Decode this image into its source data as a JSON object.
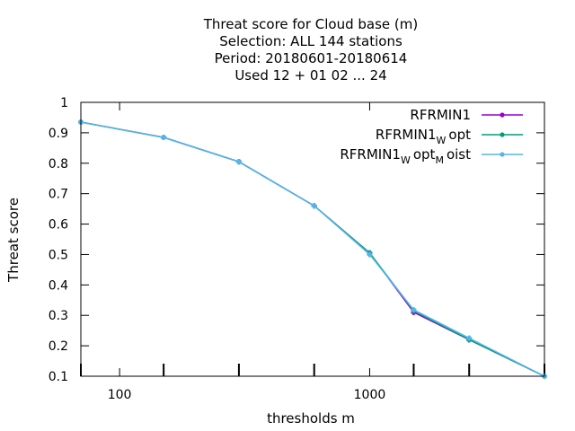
{
  "chart_data": {
    "type": "line",
    "title_lines": [
      "Threat score  for Cloud base (m)",
      "Selection: ALL    144 stations",
      "Period: 20180601-20180614",
      "Used  12 + 01 02 ... 24"
    ],
    "xlabel": "thresholds m",
    "ylabel": "Threat score",
    "xscale": "log",
    "xlim": [
      70,
      5000
    ],
    "ylim": [
      0.1,
      1.0
    ],
    "x_major_ticks": [
      100,
      1000
    ],
    "x_major_tick_labels": [
      "100",
      "1000"
    ],
    "x_minor_ticks": [
      70,
      150,
      300,
      600,
      1500,
      2500,
      5000
    ],
    "y_ticks": [
      0.1,
      0.2,
      0.3,
      0.4,
      0.5,
      0.6,
      0.7,
      0.8,
      0.9,
      1.0
    ],
    "y_tick_labels": [
      "0.1",
      "0.2",
      "0.3",
      "0.4",
      "0.5",
      "0.6",
      "0.7",
      "0.8",
      "0.9",
      "1"
    ],
    "grid": false,
    "legend_position": "top-right",
    "x": [
      70,
      150,
      300,
      600,
      1000,
      1500,
      2500,
      5000
    ],
    "series": [
      {
        "legend_main": "RFRMIN1",
        "legend_parts": [],
        "color": "#9400d3",
        "values": [
          0.935,
          0.885,
          0.805,
          0.66,
          0.505,
          0.31,
          0.22,
          0.1
        ]
      },
      {
        "legend_main": "RFRMIN1",
        "legend_parts": [
          [
            "W",
            "opt"
          ]
        ],
        "color": "#009e73",
        "values": [
          0.935,
          0.885,
          0.805,
          0.66,
          0.505,
          0.315,
          0.22,
          0.1
        ]
      },
      {
        "legend_main": "RFRMIN1",
        "legend_parts": [
          [
            "W",
            "opt"
          ],
          [
            "M",
            "oist"
          ]
        ],
        "color": "#56b4e9",
        "values": [
          0.935,
          0.885,
          0.805,
          0.66,
          0.5,
          0.318,
          0.225,
          0.1
        ]
      }
    ]
  }
}
